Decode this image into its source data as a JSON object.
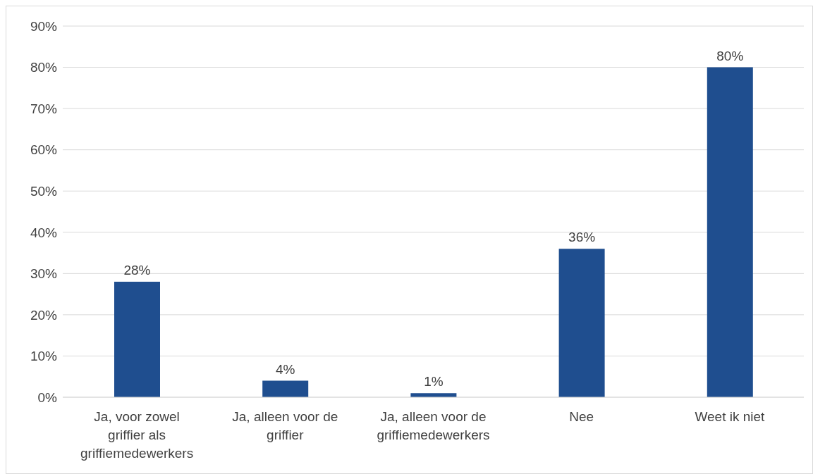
{
  "chart_data": {
    "type": "bar",
    "categories": [
      "Ja, voor zowel griffier als griffiemedewerkers",
      "Ja, alleen voor de griffier",
      "Ja, alleen voor de griffiemedewerkers",
      "Nee",
      "Weet ik niet"
    ],
    "values": [
      28,
      4,
      1,
      36,
      80
    ],
    "color": "#1f4e8f",
    "value_labels": [
      "28%",
      "4%",
      "1%",
      "36%",
      "80%"
    ],
    "ylim": [
      0,
      90
    ],
    "yticks": [
      {
        "value": 0,
        "label": "0%"
      },
      {
        "value": 10,
        "label": "10%"
      },
      {
        "value": 20,
        "label": "20%"
      },
      {
        "value": 30,
        "label": "30%"
      },
      {
        "value": 40,
        "label": "40%"
      },
      {
        "value": 50,
        "label": "50%"
      },
      {
        "value": 60,
        "label": "60%"
      },
      {
        "value": 70,
        "label": "70%"
      },
      {
        "value": 80,
        "label": "80%"
      },
      {
        "value": 90,
        "label": "90%"
      }
    ],
    "grid": "y"
  }
}
